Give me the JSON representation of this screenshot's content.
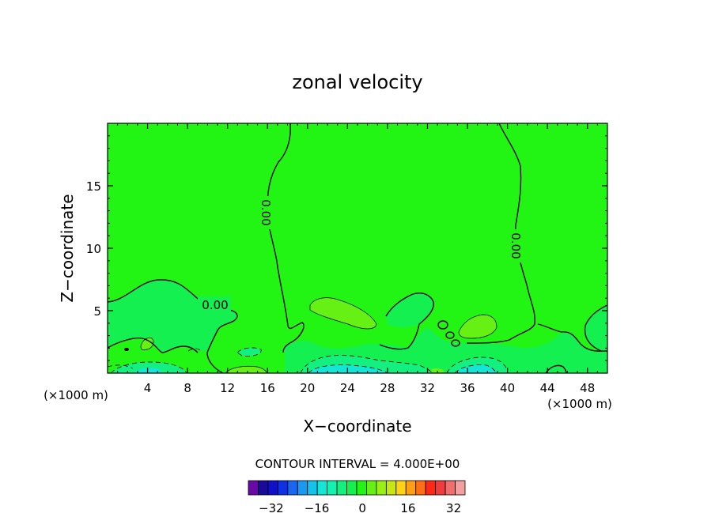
{
  "chart_data": {
    "type": "heatmap",
    "title": "zonal velocity",
    "xlabel": "X−coordinate",
    "ylabel": "Z−coordinate",
    "x_unit_left": "(×1000 m)",
    "x_unit_right": "(×1000 m)",
    "xlim": [
      0,
      50
    ],
    "ylim": [
      0,
      20
    ],
    "x_ticks": [
      4,
      8,
      12,
      16,
      20,
      24,
      28,
      32,
      36,
      40,
      44,
      48
    ],
    "y_ticks": [
      5,
      10,
      15
    ],
    "contour_label": "0.00",
    "contour_interval_text": "CONTOUR INTERVAL = 4.000E+00",
    "colorbar": {
      "ticks": [
        -32,
        -16,
        0,
        16,
        32
      ],
      "tick_labels": [
        "−32",
        "−16",
        "0",
        "16",
        "32"
      ],
      "min": -40,
      "max": 36,
      "colors": [
        "#6a0aa6",
        "#1a0a9c",
        "#1010c8",
        "#1030e6",
        "#1a66ee",
        "#1a99f0",
        "#14c2ea",
        "#14e6d6",
        "#14f0b0",
        "#14f080",
        "#14f050",
        "#22f514",
        "#66f014",
        "#99f014",
        "#c8e614",
        "#ffd214",
        "#ffa014",
        "#ff6e14",
        "#ff2814",
        "#f03c3c",
        "#f06e6e",
        "#f5a0a0"
      ]
    },
    "colors": {
      "background_field": "#22f514",
      "positive_region": "#66f014",
      "slight_negative": "#14f050",
      "negative_region": "#14f080",
      "strong_negative": "#14e6d6"
    }
  }
}
